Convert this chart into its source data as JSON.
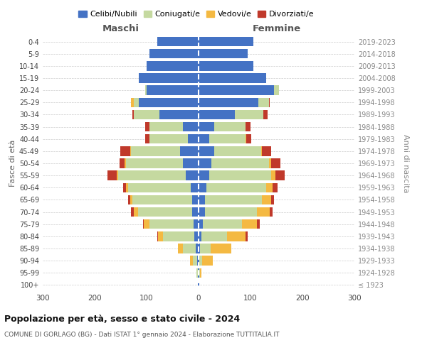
{
  "age_groups": [
    "100+",
    "95-99",
    "90-94",
    "85-89",
    "80-84",
    "75-79",
    "70-74",
    "65-69",
    "60-64",
    "55-59",
    "50-54",
    "45-49",
    "40-44",
    "35-39",
    "30-34",
    "25-29",
    "20-24",
    "15-19",
    "10-14",
    "5-9",
    "0-4"
  ],
  "birth_years": [
    "≤ 1923",
    "1924-1928",
    "1929-1933",
    "1934-1938",
    "1939-1943",
    "1944-1948",
    "1949-1953",
    "1954-1958",
    "1959-1963",
    "1964-1968",
    "1969-1973",
    "1974-1978",
    "1979-1983",
    "1984-1988",
    "1989-1993",
    "1994-1998",
    "1999-2003",
    "2004-2008",
    "2009-2013",
    "2014-2018",
    "2019-2023"
  ],
  "maschi": {
    "celibi": [
      1,
      1,
      3,
      5,
      8,
      10,
      12,
      12,
      15,
      25,
      30,
      35,
      20,
      30,
      75,
      115,
      100,
      115,
      100,
      95,
      80
    ],
    "coniugati": [
      1,
      3,
      8,
      25,
      60,
      85,
      105,
      115,
      120,
      130,
      110,
      95,
      75,
      65,
      50,
      10,
      3,
      0,
      0,
      0,
      0
    ],
    "vedovi": [
      0,
      0,
      5,
      10,
      10,
      10,
      8,
      5,
      5,
      2,
      2,
      2,
      0,
      0,
      0,
      5,
      0,
      0,
      0,
      0,
      0
    ],
    "divorziati": [
      0,
      0,
      0,
      0,
      2,
      2,
      5,
      3,
      5,
      18,
      10,
      18,
      8,
      8,
      2,
      0,
      0,
      0,
      0,
      0,
      0
    ]
  },
  "femmine": {
    "nubili": [
      1,
      1,
      2,
      3,
      5,
      8,
      12,
      12,
      15,
      20,
      25,
      30,
      20,
      30,
      70,
      115,
      145,
      130,
      105,
      95,
      105
    ],
    "coniugate": [
      1,
      2,
      5,
      20,
      50,
      75,
      100,
      110,
      115,
      120,
      110,
      90,
      70,
      60,
      55,
      20,
      10,
      0,
      0,
      0,
      0
    ],
    "vedove": [
      0,
      2,
      20,
      40,
      35,
      30,
      25,
      18,
      12,
      8,
      5,
      2,
      2,
      0,
      0,
      0,
      0,
      0,
      0,
      0,
      0
    ],
    "divorziate": [
      0,
      0,
      0,
      0,
      5,
      5,
      5,
      5,
      10,
      18,
      18,
      18,
      10,
      10,
      8,
      2,
      0,
      0,
      0,
      0,
      0
    ]
  },
  "colors": {
    "celibi": "#4472c4",
    "coniugati": "#c5d9a0",
    "vedovi": "#f4b942",
    "divorziati": "#c0392b"
  },
  "xlim": 300,
  "title": "Popolazione per età, sesso e stato civile - 2024",
  "subtitle": "COMUNE DI GORLAGO (BG) - Dati ISTAT 1° gennaio 2024 - Elaborazione TUTTITALIA.IT",
  "ylabel_left": "Fasce di età",
  "ylabel_right": "Anni di nascita",
  "xlabel_maschi": "Maschi",
  "xlabel_femmine": "Femmine",
  "legend_labels": [
    "Celibi/Nubili",
    "Coniugati/e",
    "Vedovi/e",
    "Divorziati/e"
  ],
  "bg_color": "#ffffff",
  "grid_color": "#cccccc"
}
